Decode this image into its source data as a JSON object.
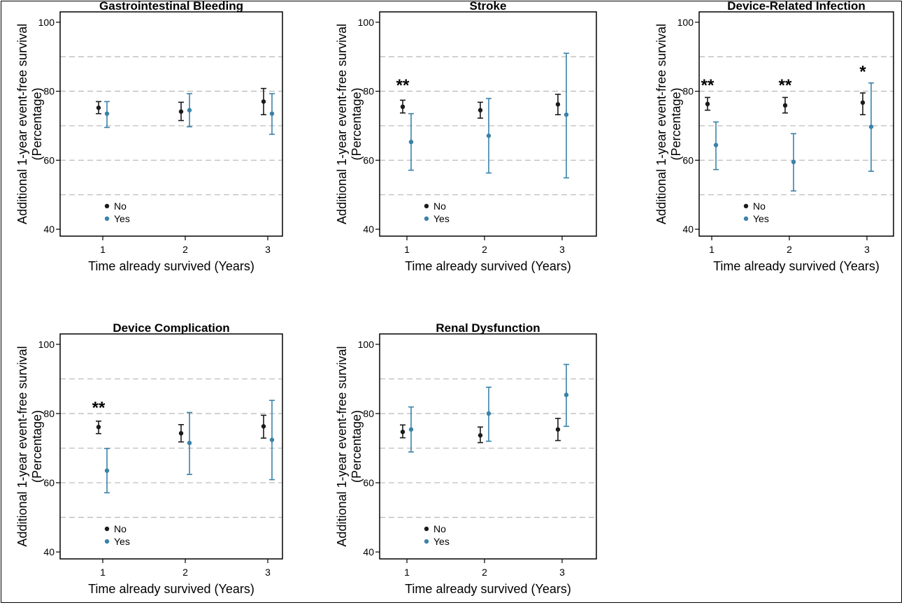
{
  "chart_data": [
    {
      "type": "errorbar",
      "title": "Gastrointestinal Bleeding",
      "xlabel": "Time already survived (Years)",
      "ylabel_line1": "Additional 1-year event-free survival",
      "ylabel_line2": "(Percentage)",
      "x": [
        1,
        2,
        3
      ],
      "ylim": [
        38,
        103
      ],
      "yticks": [
        40,
        60,
        80,
        100
      ],
      "gridlines": [
        50,
        60,
        70,
        80,
        90
      ],
      "series": [
        {
          "name": "No",
          "color": "#1a1a1a",
          "values": [
            75.2,
            74.1,
            77.0
          ],
          "lower": [
            73.5,
            71.5,
            73.2
          ],
          "upper": [
            77.0,
            76.8,
            80.8
          ]
        },
        {
          "name": "Yes",
          "color": "#3a82a8",
          "values": [
            73.5,
            74.5,
            73.5
          ],
          "lower": [
            69.5,
            69.7,
            67.5
          ],
          "upper": [
            77.0,
            79.3,
            79.3
          ]
        }
      ],
      "annotations": []
    },
    {
      "type": "errorbar",
      "title": "Stroke",
      "xlabel": "Time already survived (Years)",
      "ylabel_line1": "Additional 1-year event-free survival",
      "ylabel_line2": "(Percentage)",
      "x": [
        1,
        2,
        3
      ],
      "ylim": [
        38,
        103
      ],
      "yticks": [
        40,
        60,
        80,
        100
      ],
      "gridlines": [
        50,
        60,
        70,
        80,
        90
      ],
      "series": [
        {
          "name": "No",
          "color": "#1a1a1a",
          "values": [
            75.5,
            74.5,
            76.2
          ],
          "lower": [
            73.7,
            72.2,
            73.2
          ],
          "upper": [
            77.4,
            76.8,
            79.1
          ]
        },
        {
          "name": "Yes",
          "color": "#3a82a8",
          "values": [
            65.3,
            67.1,
            73.2
          ],
          "lower": [
            57.1,
            56.3,
            54.9
          ],
          "upper": [
            73.5,
            77.9,
            91.0
          ]
        }
      ],
      "annotations": [
        {
          "x": 1,
          "label": "**"
        }
      ]
    },
    {
      "type": "errorbar",
      "title": "Device-Related Infection",
      "xlabel": "Time already survived (Years)",
      "ylabel_line1": "Additional 1-year event-free survival",
      "ylabel_line2": "(Percentage)",
      "x": [
        1,
        2,
        3
      ],
      "ylim": [
        38,
        103
      ],
      "yticks": [
        40,
        60,
        80,
        100
      ],
      "gridlines": [
        50,
        60,
        70,
        80,
        90
      ],
      "series": [
        {
          "name": "No",
          "color": "#1a1a1a",
          "values": [
            76.3,
            75.9,
            76.7
          ],
          "lower": [
            74.5,
            73.7,
            73.2
          ],
          "upper": [
            78.2,
            78.2,
            79.5
          ]
        },
        {
          "name": "Yes",
          "color": "#3a82a8",
          "values": [
            64.4,
            59.5,
            69.7
          ],
          "lower": [
            57.3,
            51.1,
            56.8
          ],
          "upper": [
            71.1,
            67.7,
            82.4
          ]
        }
      ],
      "annotations": [
        {
          "x": 1,
          "label": "**"
        },
        {
          "x": 2,
          "label": "**"
        },
        {
          "x": 3,
          "label": "*"
        }
      ]
    },
    {
      "type": "errorbar",
      "title": "Device Complication",
      "xlabel": "Time already survived (Years)",
      "ylabel_line1": "Additional 1-year event-free survival",
      "ylabel_line2": "(Percentage)",
      "x": [
        1,
        2,
        3
      ],
      "ylim": [
        38,
        103
      ],
      "yticks": [
        40,
        60,
        80,
        100
      ],
      "gridlines": [
        50,
        60,
        70,
        80,
        90
      ],
      "series": [
        {
          "name": "No",
          "color": "#1a1a1a",
          "values": [
            76.1,
            74.3,
            76.3
          ],
          "lower": [
            74.2,
            71.8,
            72.9
          ],
          "upper": [
            77.8,
            76.8,
            79.5
          ]
        },
        {
          "name": "Yes",
          "color": "#3a82a8",
          "values": [
            63.5,
            71.5,
            72.4
          ],
          "lower": [
            57.1,
            62.4,
            60.9
          ],
          "upper": [
            69.9,
            80.3,
            83.8
          ]
        }
      ],
      "annotations": [
        {
          "x": 1,
          "label": "**"
        }
      ]
    },
    {
      "type": "errorbar",
      "title": "Renal Dysfunction",
      "xlabel": "Time already survived (Years)",
      "ylabel_line1": "Additional 1-year event-free survival",
      "ylabel_line2": "(Percentage)",
      "x": [
        1,
        2,
        3
      ],
      "ylim": [
        38,
        103
      ],
      "yticks": [
        40,
        60,
        80,
        100
      ],
      "gridlines": [
        50,
        60,
        70,
        80,
        90
      ],
      "series": [
        {
          "name": "No",
          "color": "#1a1a1a",
          "values": [
            74.7,
            73.7,
            75.4
          ],
          "lower": [
            73.0,
            71.6,
            72.2
          ],
          "upper": [
            76.7,
            76.1,
            78.6
          ]
        },
        {
          "name": "Yes",
          "color": "#3a82a8",
          "values": [
            75.4,
            80.0,
            85.4
          ],
          "lower": [
            68.9,
            72.0,
            76.3
          ],
          "upper": [
            81.9,
            87.6,
            94.2
          ]
        }
      ],
      "annotations": []
    }
  ]
}
